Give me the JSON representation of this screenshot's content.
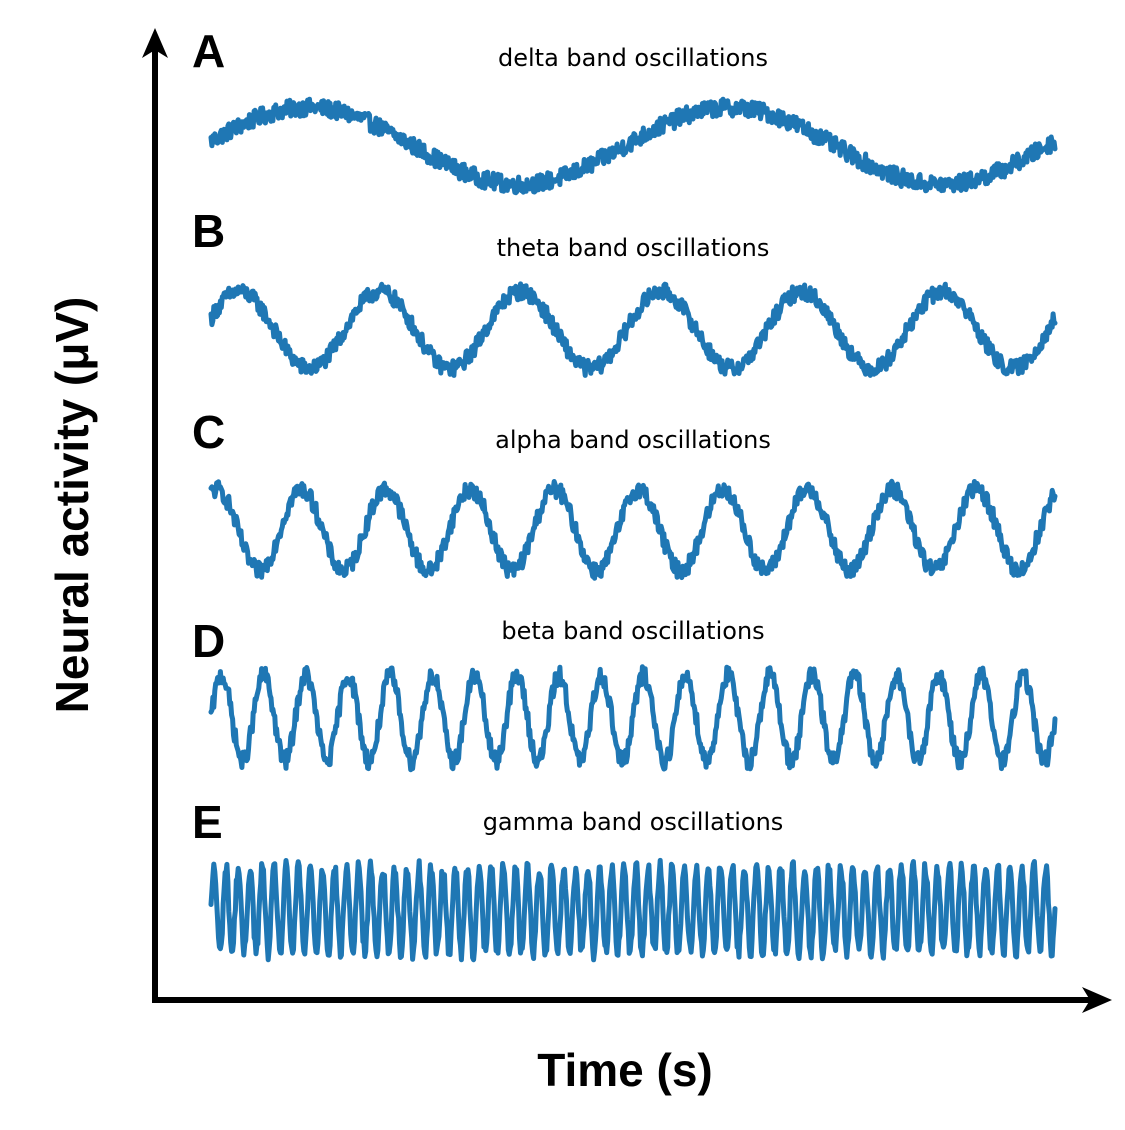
{
  "chart_data": {
    "type": "line",
    "xlabel": "Time (s)",
    "ylabel": "Neural activity (μV)",
    "grid": false,
    "line_color": "#1f77b4",
    "panels": [
      {
        "letter": "A",
        "title": "delta band oscillations",
        "cycles": 2,
        "phase": 0.02,
        "noise": 0.32,
        "ylim": [
          -1.35,
          1.35
        ]
      },
      {
        "letter": "B",
        "title": "theta band oscillations",
        "cycles": 6,
        "phase": 0.05,
        "noise": 0.3,
        "ylim": [
          -1.35,
          1.35
        ]
      },
      {
        "letter": "C",
        "title": "alpha band oscillations",
        "cycles": 10,
        "phase": 0.18,
        "noise": 0.3,
        "ylim": [
          -1.35,
          1.35
        ]
      },
      {
        "letter": "D",
        "title": "beta band oscillations",
        "cycles": 20,
        "phase": 0.0,
        "noise": 0.3,
        "ylim": [
          -1.35,
          1.35
        ]
      },
      {
        "letter": "E",
        "title": "gamma band oscillations",
        "cycles": 70,
        "phase": 0.0,
        "noise": 0.25,
        "ylim": [
          -1.35,
          1.35
        ]
      }
    ]
  }
}
